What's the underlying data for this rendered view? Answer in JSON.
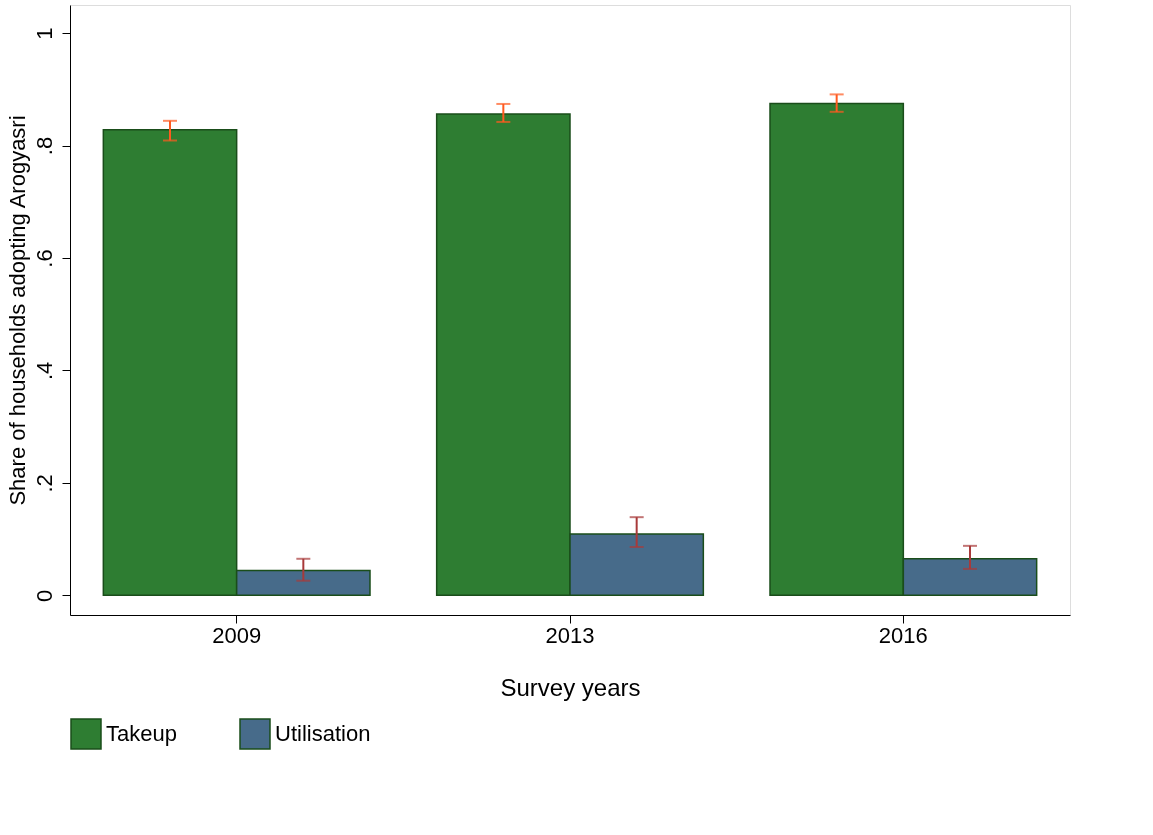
{
  "chart_data": {
    "type": "bar",
    "xlabel": "Survey years",
    "ylabel": "Share of households adopting Arogyasri",
    "categories": [
      "2009",
      "2013",
      "2016"
    ],
    "series": [
      {
        "name": "Takeup",
        "color": "#2e7d32",
        "values": [
          0.828,
          0.856,
          0.875
        ],
        "errors": [
          [
            0.809,
            0.844
          ],
          [
            0.842,
            0.874
          ],
          [
            0.86,
            0.891
          ]
        ]
      },
      {
        "name": "Utilisation",
        "color": "#476b8a",
        "values": [
          0.044,
          0.109,
          0.065
        ],
        "errors": [
          [
            0.026,
            0.065
          ],
          [
            0.086,
            0.139
          ],
          [
            0.047,
            0.088
          ]
        ]
      }
    ],
    "ylim": [
      -0.035,
      1.05
    ],
    "yticks": [
      0,
      {
        "value": 0.2,
        "label": ".2"
      },
      {
        "value": 0.4,
        "label": ".4"
      },
      {
        "value": 0.6,
        "label": ".6"
      },
      {
        "value": 0.8,
        "label": ".8"
      },
      1
    ],
    "grid": false,
    "legend": "bottom"
  }
}
